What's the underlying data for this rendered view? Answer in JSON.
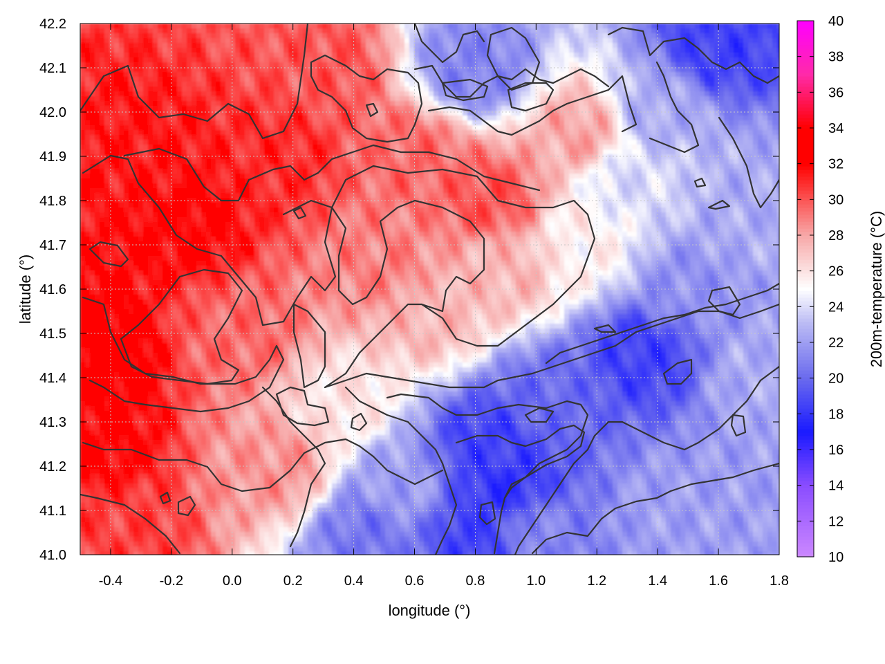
{
  "chart_data": {
    "type": "heatmap",
    "title": "",
    "xlabel": "longitude (°)",
    "ylabel": "latitude (°)",
    "colorbar_label": "200m-temperature (°C)",
    "xlim": [
      -0.5,
      1.8
    ],
    "ylim": [
      41.0,
      42.2
    ],
    "x_ticks": [
      {
        "value": -0.4,
        "label": "-0.4"
      },
      {
        "value": -0.2,
        "label": "-0.2"
      },
      {
        "value": 0.0,
        "label": "0.0"
      },
      {
        "value": 0.2,
        "label": "0.2"
      },
      {
        "value": 0.4,
        "label": "0.4"
      },
      {
        "value": 0.6,
        "label": "0.6"
      },
      {
        "value": 0.8,
        "label": "0.8"
      },
      {
        "value": 1.0,
        "label": "1.0"
      },
      {
        "value": 1.2,
        "label": "1.2"
      },
      {
        "value": 1.4,
        "label": "1.4"
      },
      {
        "value": 1.6,
        "label": "1.6"
      },
      {
        "value": 1.8,
        "label": "1.8"
      }
    ],
    "y_ticks": [
      {
        "value": 41.0,
        "label": "41.0"
      },
      {
        "value": 41.1,
        "label": "41.1"
      },
      {
        "value": 41.2,
        "label": "41.2"
      },
      {
        "value": 41.3,
        "label": "41.3"
      },
      {
        "value": 41.4,
        "label": "41.4"
      },
      {
        "value": 41.5,
        "label": "41.5"
      },
      {
        "value": 41.6,
        "label": "41.6"
      },
      {
        "value": 41.7,
        "label": "41.7"
      },
      {
        "value": 41.8,
        "label": "41.8"
      },
      {
        "value": 41.9,
        "label": "41.9"
      },
      {
        "value": 42.0,
        "label": "42.0"
      },
      {
        "value": 42.1,
        "label": "42.1"
      },
      {
        "value": 42.2,
        "label": "42.2"
      }
    ],
    "colorbar_range": [
      10,
      40
    ],
    "colorbar_ticks": [
      {
        "value": 10,
        "label": "10"
      },
      {
        "value": 12,
        "label": "12"
      },
      {
        "value": 14,
        "label": "14"
      },
      {
        "value": 16,
        "label": "16"
      },
      {
        "value": 18,
        "label": "18"
      },
      {
        "value": 20,
        "label": "20"
      },
      {
        "value": 22,
        "label": "22"
      },
      {
        "value": 24,
        "label": "24"
      },
      {
        "value": 26,
        "label": "26"
      },
      {
        "value": 28,
        "label": "28"
      },
      {
        "value": 30,
        "label": "30"
      },
      {
        "value": 32,
        "label": "32"
      },
      {
        "value": 34,
        "label": "34"
      },
      {
        "value": 36,
        "label": "36"
      },
      {
        "value": 38,
        "label": "38"
      },
      {
        "value": 40,
        "label": "40"
      }
    ],
    "colormap": [
      {
        "value": 10,
        "color": "#cc88ff"
      },
      {
        "value": 14,
        "color": "#8a4dff"
      },
      {
        "value": 17,
        "color": "#1a1aff"
      },
      {
        "value": 20,
        "color": "#6a6aee"
      },
      {
        "value": 23,
        "color": "#b8b8f4"
      },
      {
        "value": 25,
        "color": "#ffffff"
      },
      {
        "value": 28,
        "color": "#f7a8a8"
      },
      {
        "value": 32,
        "color": "#ff0000"
      },
      {
        "value": 34,
        "color": "#ff0000"
      },
      {
        "value": 37,
        "color": "#ff2aa8"
      },
      {
        "value": 40,
        "color": "#ff00ff"
      }
    ],
    "grid": true,
    "colorbar_position": "right",
    "temperature_field_samples": [
      {
        "lon": -0.45,
        "lat": 41.45,
        "t": 32.5
      },
      {
        "lon": -0.45,
        "lat": 41.25,
        "t": 32.0
      },
      {
        "lon": -0.15,
        "lat": 41.75,
        "t": 32.0
      },
      {
        "lon": -0.3,
        "lat": 41.9,
        "t": 31.5
      },
      {
        "lon": 0.15,
        "lat": 41.9,
        "t": 31.0
      },
      {
        "lon": -0.35,
        "lat": 41.05,
        "t": 30.5
      },
      {
        "lon": 0.3,
        "lat": 42.1,
        "t": 30.0
      },
      {
        "lon": 0.6,
        "lat": 41.9,
        "t": 29.5
      },
      {
        "lon": 0.85,
        "lat": 41.8,
        "t": 30.0
      },
      {
        "lon": 0.05,
        "lat": 41.5,
        "t": 29.5
      },
      {
        "lon": 0.5,
        "lat": 41.65,
        "t": 29.0
      },
      {
        "lon": 0.15,
        "lat": 41.2,
        "t": 28.5
      },
      {
        "lon": 0.65,
        "lat": 41.55,
        "t": 27.5
      },
      {
        "lon": 0.9,
        "lat": 41.65,
        "t": 27.5
      },
      {
        "lon": 1.15,
        "lat": 41.95,
        "t": 28.0
      },
      {
        "lon": 0.35,
        "lat": 41.35,
        "t": 26.0
      },
      {
        "lon": 1.15,
        "lat": 41.7,
        "t": 25.5
      },
      {
        "lon": 0.55,
        "lat": 41.15,
        "t": 22.0
      },
      {
        "lon": 0.45,
        "lat": 41.05,
        "t": 20.5
      },
      {
        "lon": 0.85,
        "lat": 41.25,
        "t": 18.5
      },
      {
        "lon": 0.9,
        "lat": 41.15,
        "t": 18.0
      },
      {
        "lon": 0.8,
        "lat": 41.05,
        "t": 18.5
      },
      {
        "lon": 1.35,
        "lat": 41.45,
        "t": 18.5
      },
      {
        "lon": 1.05,
        "lat": 41.35,
        "t": 20.0
      },
      {
        "lon": 1.5,
        "lat": 41.6,
        "t": 21.5
      },
      {
        "lon": 1.45,
        "lat": 41.1,
        "t": 22.0
      },
      {
        "lon": 1.7,
        "lat": 41.1,
        "t": 22.0
      },
      {
        "lon": 1.7,
        "lat": 41.75,
        "t": 22.5
      },
      {
        "lon": 1.6,
        "lat": 42.15,
        "t": 18.5
      },
      {
        "lon": 1.4,
        "lat": 42.0,
        "t": 22.5
      },
      {
        "lon": 0.8,
        "lat": 42.1,
        "t": 21.0
      },
      {
        "lon": 1.3,
        "lat": 41.85,
        "t": 24.0
      },
      {
        "lon": 1.75,
        "lat": 41.4,
        "t": 22.5
      },
      {
        "lon": 1.0,
        "lat": 41.05,
        "t": 21.0
      }
    ]
  }
}
